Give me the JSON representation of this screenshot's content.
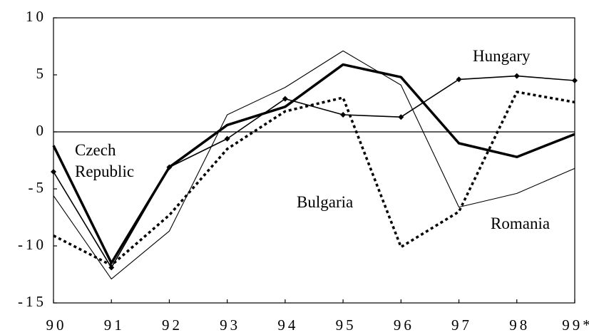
{
  "chart_data": {
    "type": "line",
    "categories": [
      "90",
      "91",
      "92",
      "93",
      "94",
      "95",
      "96",
      "97",
      "98",
      "99*"
    ],
    "series": [
      {
        "name": "Czech Republic",
        "color": "#000000",
        "line_style": "solid",
        "weight": "heavy",
        "values": [
          -1.2,
          -11.5,
          -3.1,
          0.6,
          2.2,
          5.9,
          4.8,
          -1.0,
          -2.2,
          -0.2
        ]
      },
      {
        "name": "Hungary",
        "color": "#000000",
        "line_style": "solid",
        "weight": "medium",
        "marker": "diamond",
        "values": [
          -3.5,
          -11.9,
          -3.1,
          -0.6,
          2.9,
          1.5,
          1.3,
          4.6,
          4.9,
          4.5
        ]
      },
      {
        "name": "Bulgaria",
        "color": "#000000",
        "line_style": "dotted",
        "weight": "heavy",
        "values": [
          -9.1,
          -11.7,
          -7.3,
          -1.5,
          1.8,
          3.0,
          -10.1,
          -7.0,
          3.5,
          2.6
        ]
      },
      {
        "name": "Romania",
        "color": "#000000",
        "line_style": "solid",
        "weight": "light",
        "values": [
          -5.6,
          -12.9,
          -8.7,
          1.5,
          3.9,
          7.1,
          4.1,
          -6.6,
          -5.4,
          -3.2
        ]
      }
    ],
    "ylim": [
      -15,
      10
    ],
    "yticks": [
      -15,
      -10,
      -5,
      0,
      5,
      10
    ],
    "zero_line": true
  }
}
